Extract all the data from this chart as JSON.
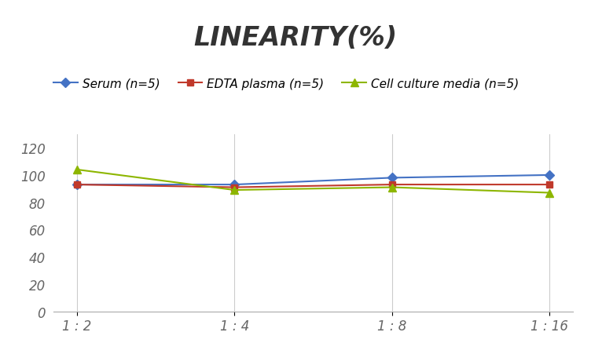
{
  "title": "LINEARITY(%)",
  "x_labels": [
    "1 : 2",
    "1 : 4",
    "1 : 8",
    "1 : 16"
  ],
  "series": [
    {
      "name": "Serum (n=5)",
      "values": [
        93,
        93,
        98,
        100
      ],
      "color": "#4472C4",
      "marker": "D",
      "marker_size": 6
    },
    {
      "name": "EDTA plasma (n=5)",
      "values": [
        93,
        91,
        93,
        93
      ],
      "color": "#C0392B",
      "marker": "s",
      "marker_size": 6
    },
    {
      "name": "Cell culture media (n=5)",
      "values": [
        104,
        89,
        91,
        87
      ],
      "color": "#8DB600",
      "marker": "^",
      "marker_size": 7
    }
  ],
  "ylim": [
    0,
    130
  ],
  "yticks": [
    0,
    20,
    40,
    60,
    80,
    100,
    120
  ],
  "background_color": "#ffffff",
  "title_fontsize": 24,
  "legend_fontsize": 11,
  "tick_fontsize": 12
}
